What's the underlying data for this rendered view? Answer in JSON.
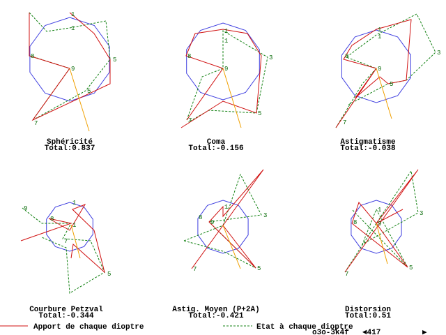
{
  "panels": [
    {
      "title": "Sphéricité",
      "total": "Total:0.837",
      "labels": [
        "1",
        "1",
        "8",
        "9",
        "5",
        "5",
        "7"
      ]
    },
    {
      "title": "Coma",
      "total": "Total:-0.156",
      "labels": [
        "1",
        "1",
        "8",
        "9",
        "3",
        "5",
        "7"
      ]
    },
    {
      "title": "Astigmatisme",
      "total": "Total:-0.038",
      "labels": [
        "1",
        "1",
        "8",
        "9",
        "5",
        "3",
        "7"
      ]
    },
    {
      "title": "Courbure Petzval",
      "total": "Total:-0.344",
      "labels": [
        "9",
        "8",
        "1",
        "1",
        "7",
        "5"
      ]
    },
    {
      "title": "Astig. Moyen (P+2A)",
      "total": "Total:-0.421",
      "labels": [
        "1",
        "8",
        "9",
        "3",
        "5",
        "7"
      ]
    },
    {
      "title": "Distorsion",
      "total": "Total:0.51",
      "labels": [
        "1",
        "8",
        "9",
        "3",
        "5",
        "7"
      ]
    }
  ],
  "legend": {
    "contribution": "Apport de chaque dioptre",
    "state": "Etat à chaque dioptre"
  },
  "status": {
    "code": "o3o-3k4f",
    "page": "◄417",
    "next": "▶"
  }
}
